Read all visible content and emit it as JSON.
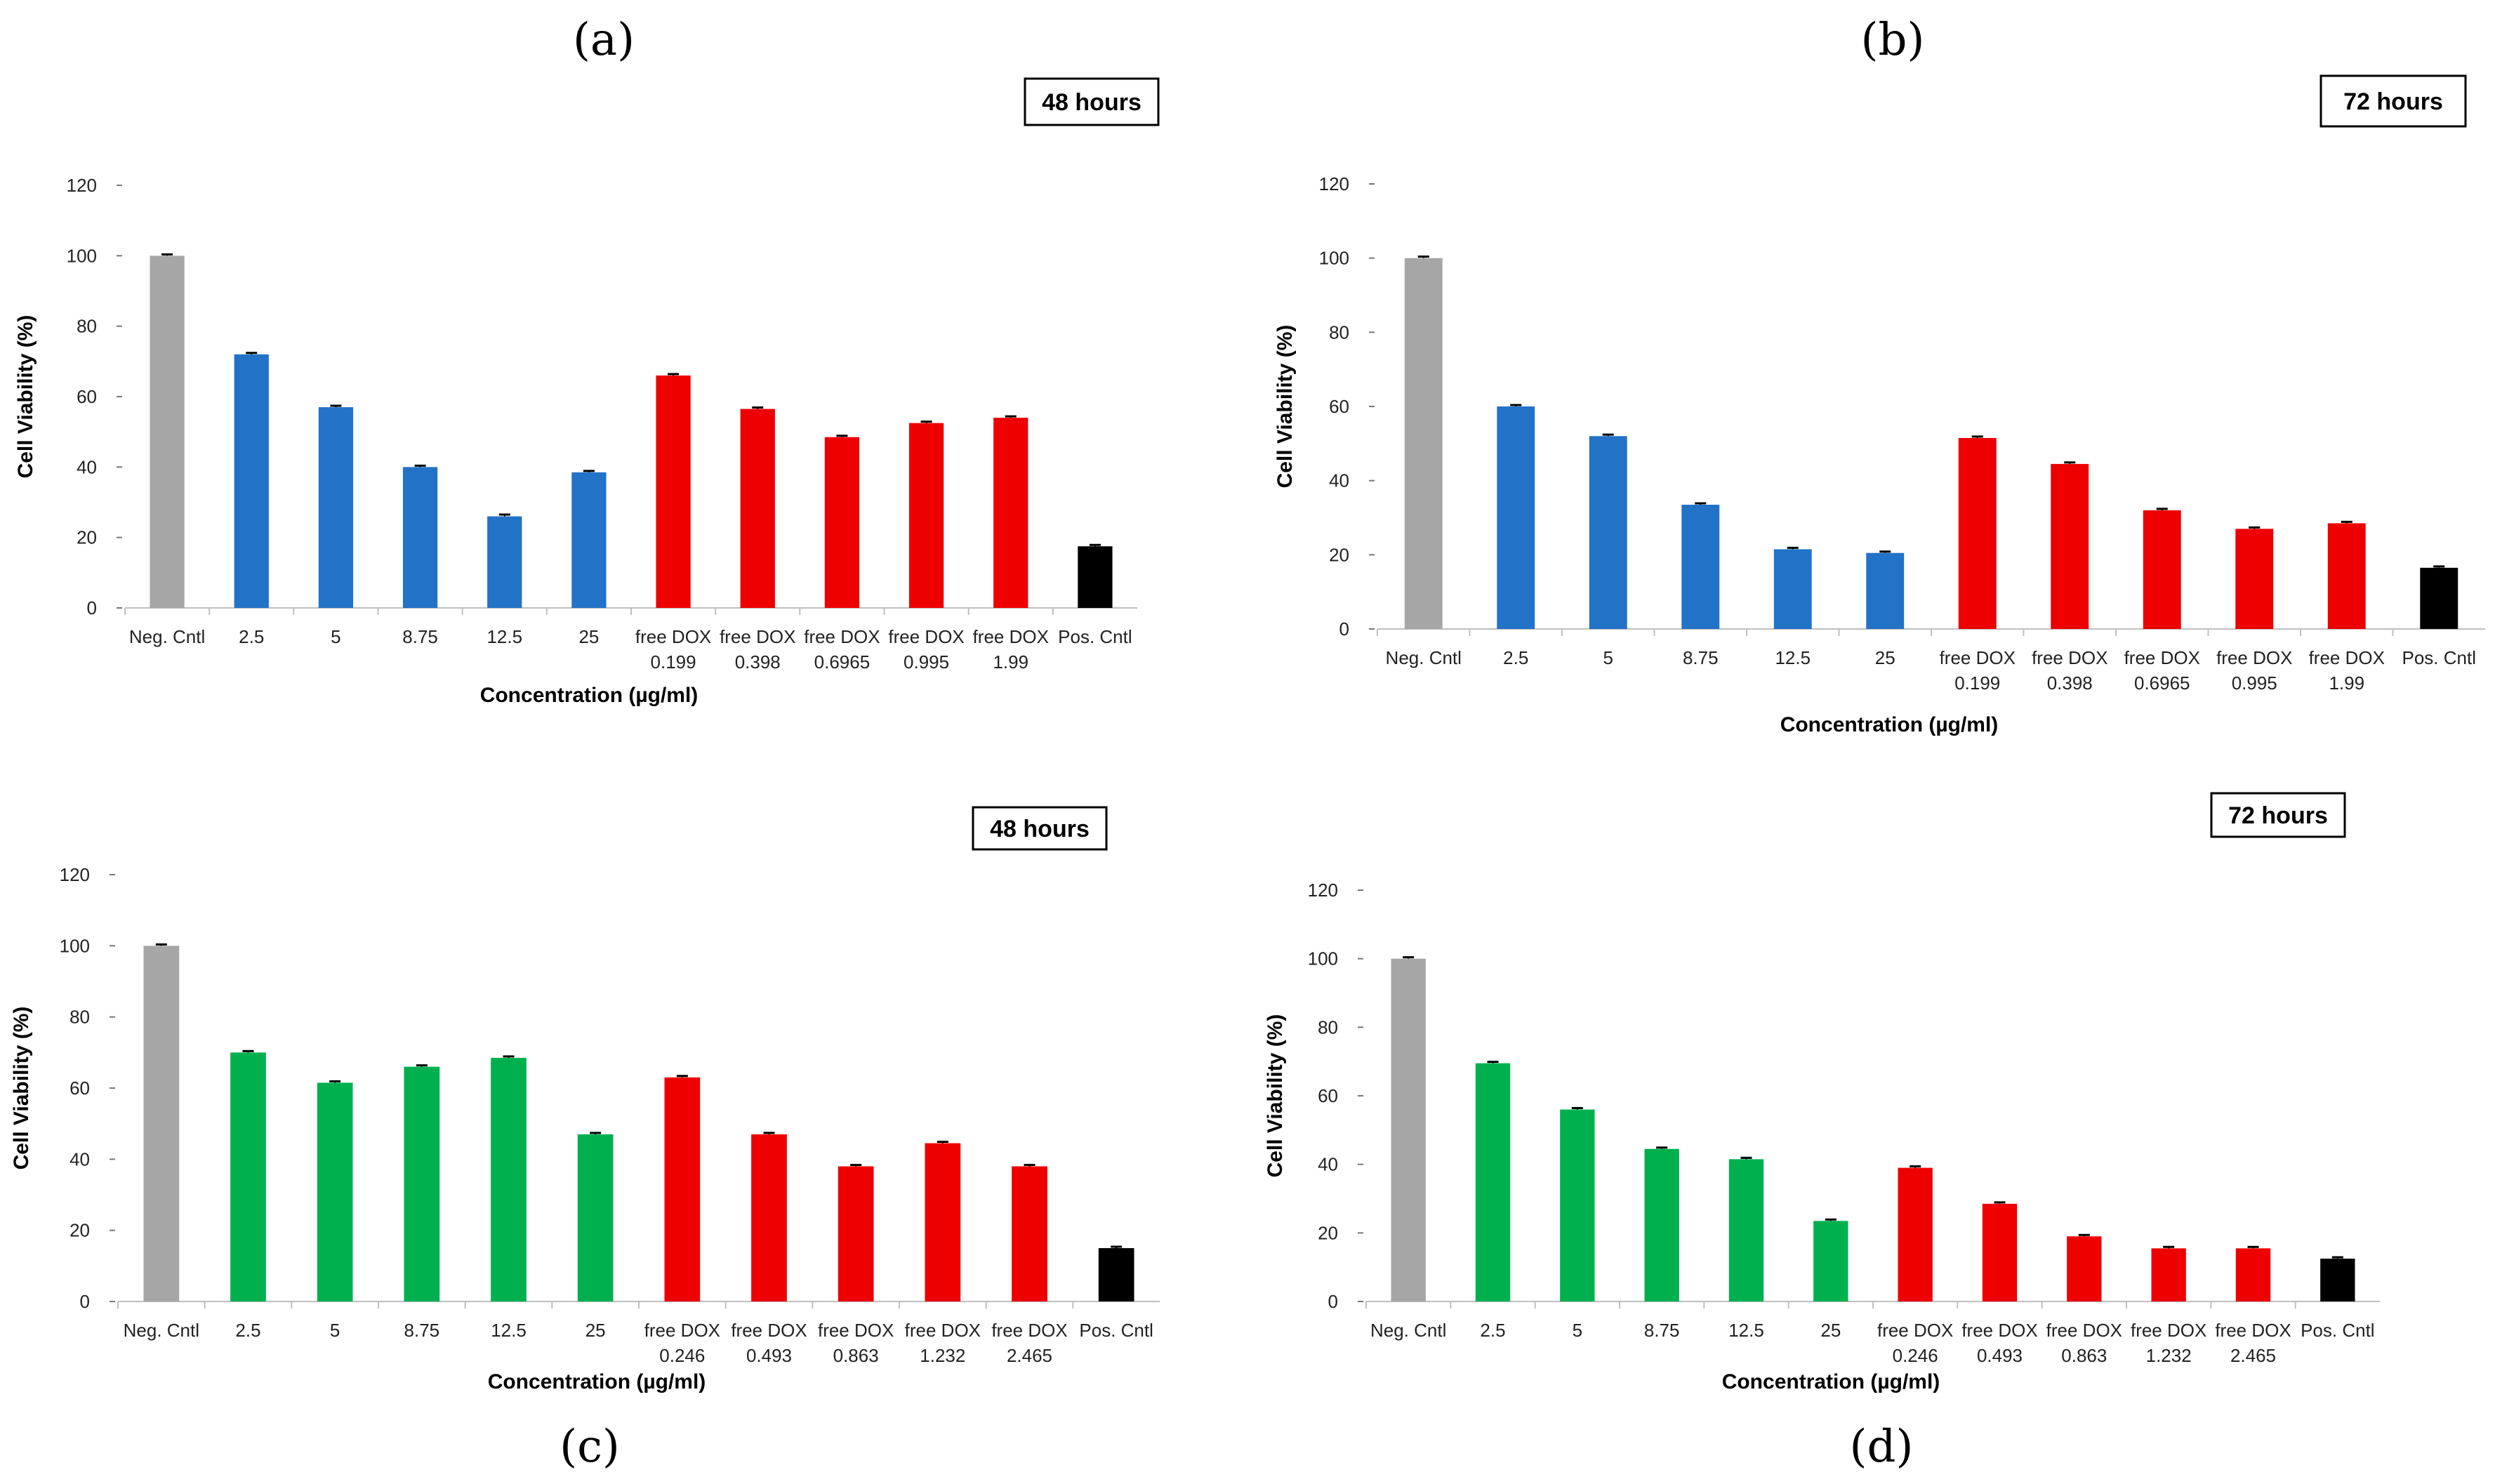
{
  "figure": {
    "panel_labels": [
      "(a)",
      "(b)",
      "(c)",
      "(d)"
    ]
  },
  "colors": {
    "control": "#a6a6a6",
    "blue": "#2272c8",
    "green": "#00b04f",
    "red": "#ee0000",
    "positive": "#000000"
  },
  "chart_data": [
    {
      "panel": "(a)",
      "type": "bar",
      "time_label": "48 hours",
      "xlabel": "Concentration (µg/ml)",
      "ylabel": "Cell Viability (%)",
      "ylim": [
        0,
        120
      ],
      "yticks": [
        0,
        20,
        40,
        60,
        80,
        100,
        120
      ],
      "categories": [
        [
          "Neg. Cntl"
        ],
        [
          "2.5"
        ],
        [
          "5"
        ],
        [
          "8.75"
        ],
        [
          "12.5"
        ],
        [
          "25"
        ],
        [
          "free DOX",
          "0.199"
        ],
        [
          "free DOX",
          "0.398"
        ],
        [
          "free DOX",
          "0.6965"
        ],
        [
          "free DOX",
          "0.995"
        ],
        [
          "free DOX",
          "1.99"
        ],
        [
          "Pos. Cntl"
        ]
      ],
      "values": [
        100,
        72,
        57,
        40,
        26,
        38.5,
        66,
        56.5,
        48.5,
        52.5,
        54,
        17.5
      ],
      "errors": [
        0.4,
        0,
        0,
        0.4,
        0.5,
        0.4,
        0.3,
        0.3,
        0,
        0.3,
        0.4,
        0
      ],
      "bar_colors": [
        "control",
        "blue",
        "blue",
        "blue",
        "blue",
        "blue",
        "red",
        "red",
        "red",
        "red",
        "red",
        "positive"
      ]
    },
    {
      "panel": "(b)",
      "type": "bar",
      "time_label": "72 hours",
      "xlabel": "Concentration (µg/ml)",
      "ylabel": "Cell Viability (%)",
      "ylim": [
        0,
        120
      ],
      "yticks": [
        0,
        20,
        40,
        60,
        80,
        100,
        120
      ],
      "categories": [
        [
          "Neg. Cntl"
        ],
        [
          "2.5"
        ],
        [
          "5"
        ],
        [
          "8.75"
        ],
        [
          "12.5"
        ],
        [
          "25"
        ],
        [
          "free DOX",
          "0.199"
        ],
        [
          "free DOX",
          "0.398"
        ],
        [
          "free DOX",
          "0.6965"
        ],
        [
          "free DOX",
          "0.995"
        ],
        [
          "free DOX",
          "1.99"
        ],
        [
          "Pos. Cntl"
        ]
      ],
      "values": [
        100,
        60,
        52,
        33.5,
        21.5,
        20.5,
        51.5,
        44.5,
        32,
        27,
        28.5,
        16.5
      ],
      "errors": [
        0.4,
        0,
        0.4,
        0,
        0,
        0,
        0,
        0.4,
        0.4,
        0,
        0.3,
        0.3
      ],
      "bar_colors": [
        "control",
        "blue",
        "blue",
        "blue",
        "blue",
        "blue",
        "red",
        "red",
        "red",
        "red",
        "red",
        "positive"
      ]
    },
    {
      "panel": "(c)",
      "type": "bar",
      "time_label": "48 hours",
      "xlabel": "Concentration (µg/ml)",
      "ylabel": "Cell Viability (%)",
      "ylim": [
        0,
        120
      ],
      "yticks": [
        0,
        20,
        40,
        60,
        80,
        100,
        120
      ],
      "categories": [
        [
          "Neg. Cntl"
        ],
        [
          "2.5"
        ],
        [
          "5"
        ],
        [
          "8.75"
        ],
        [
          "12.5"
        ],
        [
          "25"
        ],
        [
          "free DOX",
          "0.246"
        ],
        [
          "free DOX",
          "0.493"
        ],
        [
          "free DOX",
          "0.863"
        ],
        [
          "free DOX",
          "1.232"
        ],
        [
          "free DOX",
          "2.465"
        ],
        [
          "Pos. Cntl"
        ]
      ],
      "values": [
        100,
        70,
        61.5,
        66,
        68.5,
        47,
        63,
        47,
        38,
        44.5,
        38,
        15
      ],
      "errors": [
        0.3,
        0.4,
        0,
        0.4,
        0.4,
        0.3,
        0.3,
        0.4,
        0,
        0,
        0.4,
        0
      ],
      "bar_colors": [
        "control",
        "green",
        "green",
        "green",
        "green",
        "green",
        "red",
        "red",
        "red",
        "red",
        "red",
        "positive"
      ]
    },
    {
      "panel": "(d)",
      "type": "bar",
      "time_label": "72 hours",
      "xlabel": "Concentration (µg/ml)",
      "ylabel": "Cell Viability (%)",
      "ylim": [
        0,
        120
      ],
      "yticks": [
        0,
        20,
        40,
        60,
        80,
        100,
        120
      ],
      "categories": [
        [
          "Neg. Cntl"
        ],
        [
          "2.5"
        ],
        [
          "5"
        ],
        [
          "8.75"
        ],
        [
          "12.5"
        ],
        [
          "25"
        ],
        [
          "free DOX",
          "0.246"
        ],
        [
          "free DOX",
          "0.493"
        ],
        [
          "free DOX",
          "0.863"
        ],
        [
          "free DOX",
          "1.232"
        ],
        [
          "free DOX",
          "2.465"
        ],
        [
          "Pos. Cntl"
        ]
      ],
      "values": [
        100,
        69.5,
        56,
        44.5,
        41.5,
        23.5,
        39,
        28.5,
        19,
        15.5,
        15.5,
        12.5
      ],
      "errors": [
        0.3,
        0.4,
        0.3,
        0.4,
        0.3,
        0.4,
        0.3,
        0,
        0.4,
        0,
        0.3,
        0
      ],
      "bar_colors": [
        "control",
        "green",
        "green",
        "green",
        "green",
        "green",
        "red",
        "red",
        "red",
        "red",
        "red",
        "positive"
      ]
    }
  ]
}
